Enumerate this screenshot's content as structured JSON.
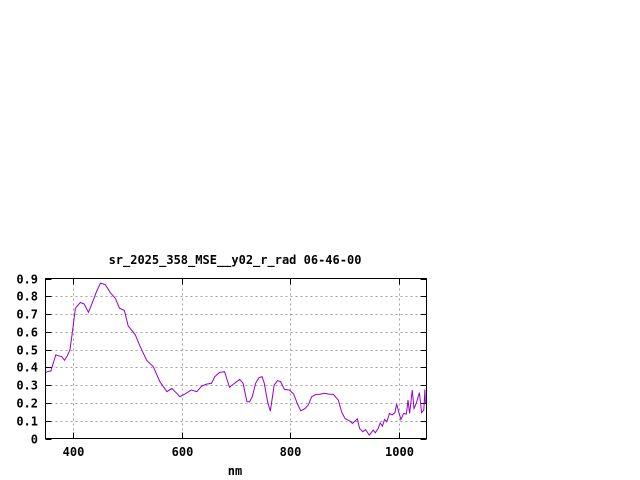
{
  "chart_data": {
    "type": "line",
    "title": "sr_2025_358_MSE__y02_r_rad 06-46-00",
    "xlabel": "nm",
    "ylabel": "",
    "xlim": [
      350,
      1050
    ],
    "ylim": [
      0,
      0.9
    ],
    "xticks": [
      "400",
      "600",
      "800",
      "1000"
    ],
    "xtick_values": [
      400,
      600,
      800,
      1000
    ],
    "yticks": [
      "0",
      "0.1",
      "0.2",
      "0.3",
      "0.4",
      "0.5",
      "0.6",
      "0.7",
      "0.8",
      "0.9"
    ],
    "ytick_values": [
      0,
      0.1,
      0.2,
      0.3,
      0.4,
      0.5,
      0.6,
      0.7,
      0.8,
      0.9
    ],
    "grid": true,
    "line_color": "#9400d3",
    "series": [
      {
        "x": [
          350,
          353,
          360,
          369,
          374,
          380,
          385,
          390,
          395,
          399,
          405,
          414,
          421,
          429,
          438,
          445,
          451,
          460,
          469,
          478,
          486,
          495,
          502,
          509,
          515,
          524,
          536,
          548,
          560,
          573,
          582,
          591,
          597,
          606,
          618,
          628,
          637,
          646,
          655,
          661,
          670,
          679,
          688,
          697,
          707,
          713,
          720,
          725,
          730,
          736,
          742,
          748,
          752,
          758,
          763,
          767,
          770,
          776,
          782,
          789,
          798,
          806,
          813,
          819,
          827,
          833,
          839,
          847,
          854,
          862,
          870,
          879,
          888,
          894,
          900,
          909,
          914,
          923,
          927,
          933,
          938,
          945,
          952,
          956,
          961,
          965,
          969,
          973,
          977,
          982,
          987,
          992,
          995,
          999,
          1003,
          1008,
          1013,
          1016,
          1019,
          1024,
          1027,
          1031,
          1037,
          1041,
          1045,
          1047,
          1048
        ],
        "y": [
          0.37,
          0.375,
          0.38,
          0.47,
          0.465,
          0.46,
          0.44,
          0.465,
          0.5,
          0.59,
          0.733,
          0.765,
          0.757,
          0.71,
          0.78,
          0.836,
          0.874,
          0.865,
          0.82,
          0.79,
          0.733,
          0.72,
          0.633,
          0.607,
          0.583,
          0.517,
          0.44,
          0.404,
          0.32,
          0.263,
          0.282,
          0.254,
          0.235,
          0.25,
          0.273,
          0.263,
          0.295,
          0.306,
          0.31,
          0.348,
          0.372,
          0.376,
          0.288,
          0.31,
          0.333,
          0.31,
          0.207,
          0.207,
          0.235,
          0.31,
          0.342,
          0.348,
          0.31,
          0.207,
          0.154,
          0.235,
          0.3,
          0.325,
          0.32,
          0.276,
          0.273,
          0.25,
          0.194,
          0.156,
          0.169,
          0.19,
          0.235,
          0.248,
          0.248,
          0.254,
          0.25,
          0.248,
          0.216,
          0.15,
          0.113,
          0.098,
          0.085,
          0.111,
          0.056,
          0.038,
          0.05,
          0.019,
          0.047,
          0.032,
          0.056,
          0.088,
          0.07,
          0.107,
          0.094,
          0.141,
          0.133,
          0.145,
          0.194,
          0.15,
          0.107,
          0.141,
          0.137,
          0.216,
          0.141,
          0.273,
          0.169,
          0.197,
          0.258,
          0.145,
          0.16,
          0.276,
          0.197
        ]
      }
    ]
  }
}
